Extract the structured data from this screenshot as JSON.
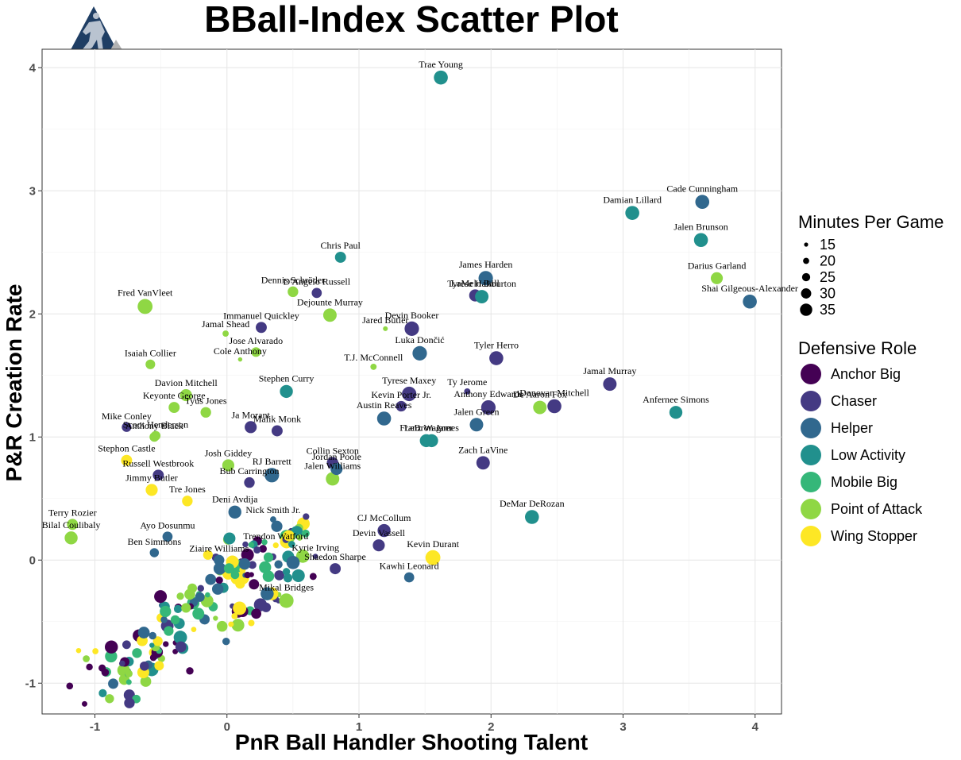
{
  "chart_data": {
    "type": "scatter",
    "title": "BBall-Index Scatter Plot",
    "xlabel": "PnR Ball Handler Shooting Talent",
    "ylabel": "P&R Creation Rate",
    "xlim": [
      -1.4,
      4.2
    ],
    "ylim": [
      -1.25,
      4.15
    ],
    "x_ticks": [
      "-1",
      "0",
      "1",
      "2",
      "3",
      "4"
    ],
    "y_ticks": [
      "-1",
      "0",
      "1",
      "2",
      "3",
      "4"
    ],
    "grid": true,
    "legend_position": "right",
    "size_legend": {
      "title": "Minutes Per Game",
      "entries": [
        {
          "label": "15",
          "value": 15
        },
        {
          "label": "20",
          "value": 20
        },
        {
          "label": "25",
          "value": 25
        },
        {
          "label": "30",
          "value": 30
        },
        {
          "label": "35",
          "value": 35
        }
      ]
    },
    "color_legend": {
      "title": "Defensive Role",
      "entries": [
        {
          "label": "Anchor Big",
          "color": "#440154"
        },
        {
          "label": "Chaser",
          "color": "#443a83"
        },
        {
          "label": "Helper",
          "color": "#31688e"
        },
        {
          "label": "Low Activity",
          "color": "#21908d"
        },
        {
          "label": "Mobile Big",
          "color": "#35b779"
        },
        {
          "label": "Point of Attack",
          "color": "#8fd744"
        },
        {
          "label": "Wing Stopper",
          "color": "#fde725"
        }
      ]
    },
    "labeled_points": [
      {
        "name": "Trae Young",
        "x": 1.62,
        "y": 3.92,
        "role": "Low Activity",
        "min": 34
      },
      {
        "name": "Cade Cunningham",
        "x": 3.6,
        "y": 2.91,
        "role": "Helper",
        "min": 34
      },
      {
        "name": "Damian Lillard",
        "x": 3.07,
        "y": 2.82,
        "role": "Low Activity",
        "min": 34
      },
      {
        "name": "Jalen Brunson",
        "x": 3.59,
        "y": 2.6,
        "role": "Low Activity",
        "min": 34
      },
      {
        "name": "Chris Paul",
        "x": 0.86,
        "y": 2.46,
        "role": "Low Activity",
        "min": 28
      },
      {
        "name": "James Harden",
        "x": 1.96,
        "y": 2.29,
        "role": "Helper",
        "min": 35
      },
      {
        "name": "Darius Garland",
        "x": 3.71,
        "y": 2.29,
        "role": "Point of Attack",
        "min": 30
      },
      {
        "name": "Dennis Schröder",
        "x": 0.5,
        "y": 2.18,
        "role": "Point of Attack",
        "min": 27
      },
      {
        "name": "D'Angelo Russell",
        "x": 0.68,
        "y": 2.17,
        "role": "Chaser",
        "min": 26
      },
      {
        "name": "LaMelo Ball",
        "x": 1.88,
        "y": 2.15,
        "role": "Chaser",
        "min": 30
      },
      {
        "name": "Tyrese Haliburton",
        "x": 1.93,
        "y": 2.14,
        "role": "Low Activity",
        "min": 33
      },
      {
        "name": "Shai Gilgeous-Alexander",
        "x": 3.96,
        "y": 2.1,
        "role": "Helper",
        "min": 34
      },
      {
        "name": "Fred VanVleet",
        "x": -0.62,
        "y": 2.06,
        "role": "Point of Attack",
        "min": 36
      },
      {
        "name": "Dejounte Murray",
        "x": 0.78,
        "y": 1.99,
        "role": "Point of Attack",
        "min": 33
      },
      {
        "name": "Immanuel Quickley",
        "x": 0.26,
        "y": 1.89,
        "role": "Chaser",
        "min": 28
      },
      {
        "name": "Devin Booker",
        "x": 1.4,
        "y": 1.88,
        "role": "Chaser",
        "min": 35
      },
      {
        "name": "Jared Butler",
        "x": 1.2,
        "y": 1.88,
        "role": "Point of Attack",
        "min": 15
      },
      {
        "name": "Jamal Shead",
        "x": -0.01,
        "y": 1.84,
        "role": "Point of Attack",
        "min": 18
      },
      {
        "name": "Jose Alvarado",
        "x": 0.22,
        "y": 1.69,
        "role": "Point of Attack",
        "min": 25
      },
      {
        "name": "Luka Dončić",
        "x": 1.46,
        "y": 1.68,
        "role": "Helper",
        "min": 35
      },
      {
        "name": "Tyler Herro",
        "x": 2.04,
        "y": 1.64,
        "role": "Chaser",
        "min": 34
      },
      {
        "name": "Isaiah Collier",
        "x": -0.58,
        "y": 1.59,
        "role": "Point of Attack",
        "min": 25
      },
      {
        "name": "T.J. McConnell",
        "x": 1.11,
        "y": 1.57,
        "role": "Point of Attack",
        "min": 18
      },
      {
        "name": "Jamal Murray",
        "x": 2.9,
        "y": 1.43,
        "role": "Chaser",
        "min": 33
      },
      {
        "name": "Ty Jerome",
        "x": 1.82,
        "y": 1.37,
        "role": "Chaser",
        "min": 18
      },
      {
        "name": "Tyrese Maxey",
        "x": 1.38,
        "y": 1.35,
        "role": "Chaser",
        "min": 35
      },
      {
        "name": "Davion Mitchell",
        "x": -0.31,
        "y": 1.34,
        "role": "Point of Attack",
        "min": 30
      },
      {
        "name": "Stephen Curry",
        "x": 0.45,
        "y": 1.37,
        "role": "Low Activity",
        "min": 32
      },
      {
        "name": "Keyonte George",
        "x": -0.4,
        "y": 1.24,
        "role": "Point of Attack",
        "min": 28
      },
      {
        "name": "Kevin Porter Jr.",
        "x": 1.32,
        "y": 1.25,
        "role": "Chaser",
        "min": 27
      },
      {
        "name": "Anthony Edwards",
        "x": 1.98,
        "y": 1.24,
        "role": "Chaser",
        "min": 35
      },
      {
        "name": "Donovan Mitchell",
        "x": 2.48,
        "y": 1.25,
        "role": "Chaser",
        "min": 34
      },
      {
        "name": "De'Aaron Fox",
        "x": 2.37,
        "y": 1.24,
        "role": "Point of Attack",
        "min": 33
      },
      {
        "name": "Anfernee Simons",
        "x": 3.4,
        "y": 1.2,
        "role": "Low Activity",
        "min": 32
      },
      {
        "name": "Tyus Jones",
        "x": -0.16,
        "y": 1.2,
        "role": "Point of Attack",
        "min": 27
      },
      {
        "name": "Austin Reaves",
        "x": 1.19,
        "y": 1.15,
        "role": "Helper",
        "min": 34
      },
      {
        "name": "Jalen Green",
        "x": 1.89,
        "y": 1.1,
        "role": "Helper",
        "min": 33
      },
      {
        "name": "Ja Morant",
        "x": 0.18,
        "y": 1.08,
        "role": "Chaser",
        "min": 30
      },
      {
        "name": "Mike Conley",
        "x": -0.76,
        "y": 1.08,
        "role": "Chaser",
        "min": 25
      },
      {
        "name": "Malik Monk",
        "x": 0.38,
        "y": 1.05,
        "role": "Chaser",
        "min": 28
      },
      {
        "name": "Scoot Henderson",
        "x": -0.54,
        "y": 1.01,
        "role": "Point of Attack",
        "min": 25
      },
      {
        "name": "Franz Wagner",
        "x": 1.51,
        "y": 0.97,
        "role": "Low Activity",
        "min": 32
      },
      {
        "name": "Stephon Castle",
        "x": -0.76,
        "y": 0.81,
        "role": "Wing Stopper",
        "min": 28
      },
      {
        "name": "Zach LaVine",
        "x": 1.94,
        "y": 0.79,
        "role": "Chaser",
        "min": 33
      },
      {
        "name": "Collin Sexton",
        "x": 0.8,
        "y": 0.79,
        "role": "Chaser",
        "min": 29
      },
      {
        "name": "Josh Giddey",
        "x": 0.01,
        "y": 0.77,
        "role": "Point of Attack",
        "min": 30
      },
      {
        "name": "RJ Barrett",
        "x": 0.34,
        "y": 0.69,
        "role": "Helper",
        "min": 35
      },
      {
        "name": "Russell Westbrook",
        "x": -0.52,
        "y": 0.69,
        "role": "Chaser",
        "min": 28
      },
      {
        "name": "Bub Carrington",
        "x": 0.17,
        "y": 0.63,
        "role": "Chaser",
        "min": 27
      },
      {
        "name": "Jalen Williams",
        "x": 0.8,
        "y": 0.66,
        "role": "Point of Attack",
        "min": 33
      },
      {
        "name": "Jimmy Butler",
        "x": -0.57,
        "y": 0.57,
        "role": "Wing Stopper",
        "min": 30
      },
      {
        "name": "DeMar DeRozan",
        "x": 2.31,
        "y": 0.35,
        "role": "Low Activity",
        "min": 34
      },
      {
        "name": "Deni Avdija",
        "x": 0.06,
        "y": 0.39,
        "role": "Helper",
        "min": 32
      },
      {
        "name": "Tre Jones",
        "x": -0.3,
        "y": 0.48,
        "role": "Wing Stopper",
        "min": 27
      },
      {
        "name": "Nick Smith Jr.",
        "x": 0.35,
        "y": 0.33,
        "role": "Helper",
        "min": 18
      },
      {
        "name": "Terry Rozier",
        "x": -1.17,
        "y": 0.29,
        "role": "Point of Attack",
        "min": 28
      },
      {
        "name": "CJ McCollum",
        "x": 1.19,
        "y": 0.24,
        "role": "Chaser",
        "min": 32
      },
      {
        "name": "Ayo Dosunmu",
        "x": -0.45,
        "y": 0.19,
        "role": "Helper",
        "min": 26
      },
      {
        "name": "Bilal Coulibaly",
        "x": -1.18,
        "y": 0.18,
        "role": "Point of Attack",
        "min": 32
      },
      {
        "name": "Trendon Watford",
        "x": 0.37,
        "y": 0.12,
        "role": "Wing Stopper",
        "min": 17
      },
      {
        "name": "Devin Vassell",
        "x": 1.15,
        "y": 0.12,
        "role": "Chaser",
        "min": 30
      },
      {
        "name": "Ziaire Williams",
        "x": -0.06,
        "y": 0.0,
        "role": "Helper",
        "min": 27
      },
      {
        "name": "Ben Simmons",
        "x": -0.55,
        "y": 0.06,
        "role": "Helper",
        "min": 24
      },
      {
        "name": "Kevin Durant",
        "x": 1.56,
        "y": 0.02,
        "role": "Wing Stopper",
        "min": 36
      },
      {
        "name": "Kyrie Irving",
        "x": 0.67,
        "y": 0.03,
        "role": "Chaser",
        "min": 16
      },
      {
        "name": "Shaedon Sharpe",
        "x": 0.82,
        "y": -0.07,
        "role": "Chaser",
        "min": 28
      },
      {
        "name": "Kawhi Leonard",
        "x": 1.38,
        "y": -0.14,
        "role": "Helper",
        "min": 26
      },
      {
        "name": "Mikal Bridges",
        "x": 0.45,
        "y": -0.33,
        "role": "Point of Attack",
        "min": 35
      },
      {
        "name": "Anthony Black",
        "x": -0.55,
        "y": 1.0,
        "role": "Point of Attack",
        "min": 25
      },
      {
        "name": "Cole Anthony",
        "x": 0.1,
        "y": 1.63,
        "role": "Point of Attack",
        "min": 14
      },
      {
        "name": "Jordan Poole",
        "x": 0.83,
        "y": 0.74,
        "role": "Helper",
        "min": 30
      },
      {
        "name": "LeBron James",
        "x": 1.55,
        "y": 0.97,
        "role": "Low Activity",
        "min": 32
      }
    ]
  }
}
